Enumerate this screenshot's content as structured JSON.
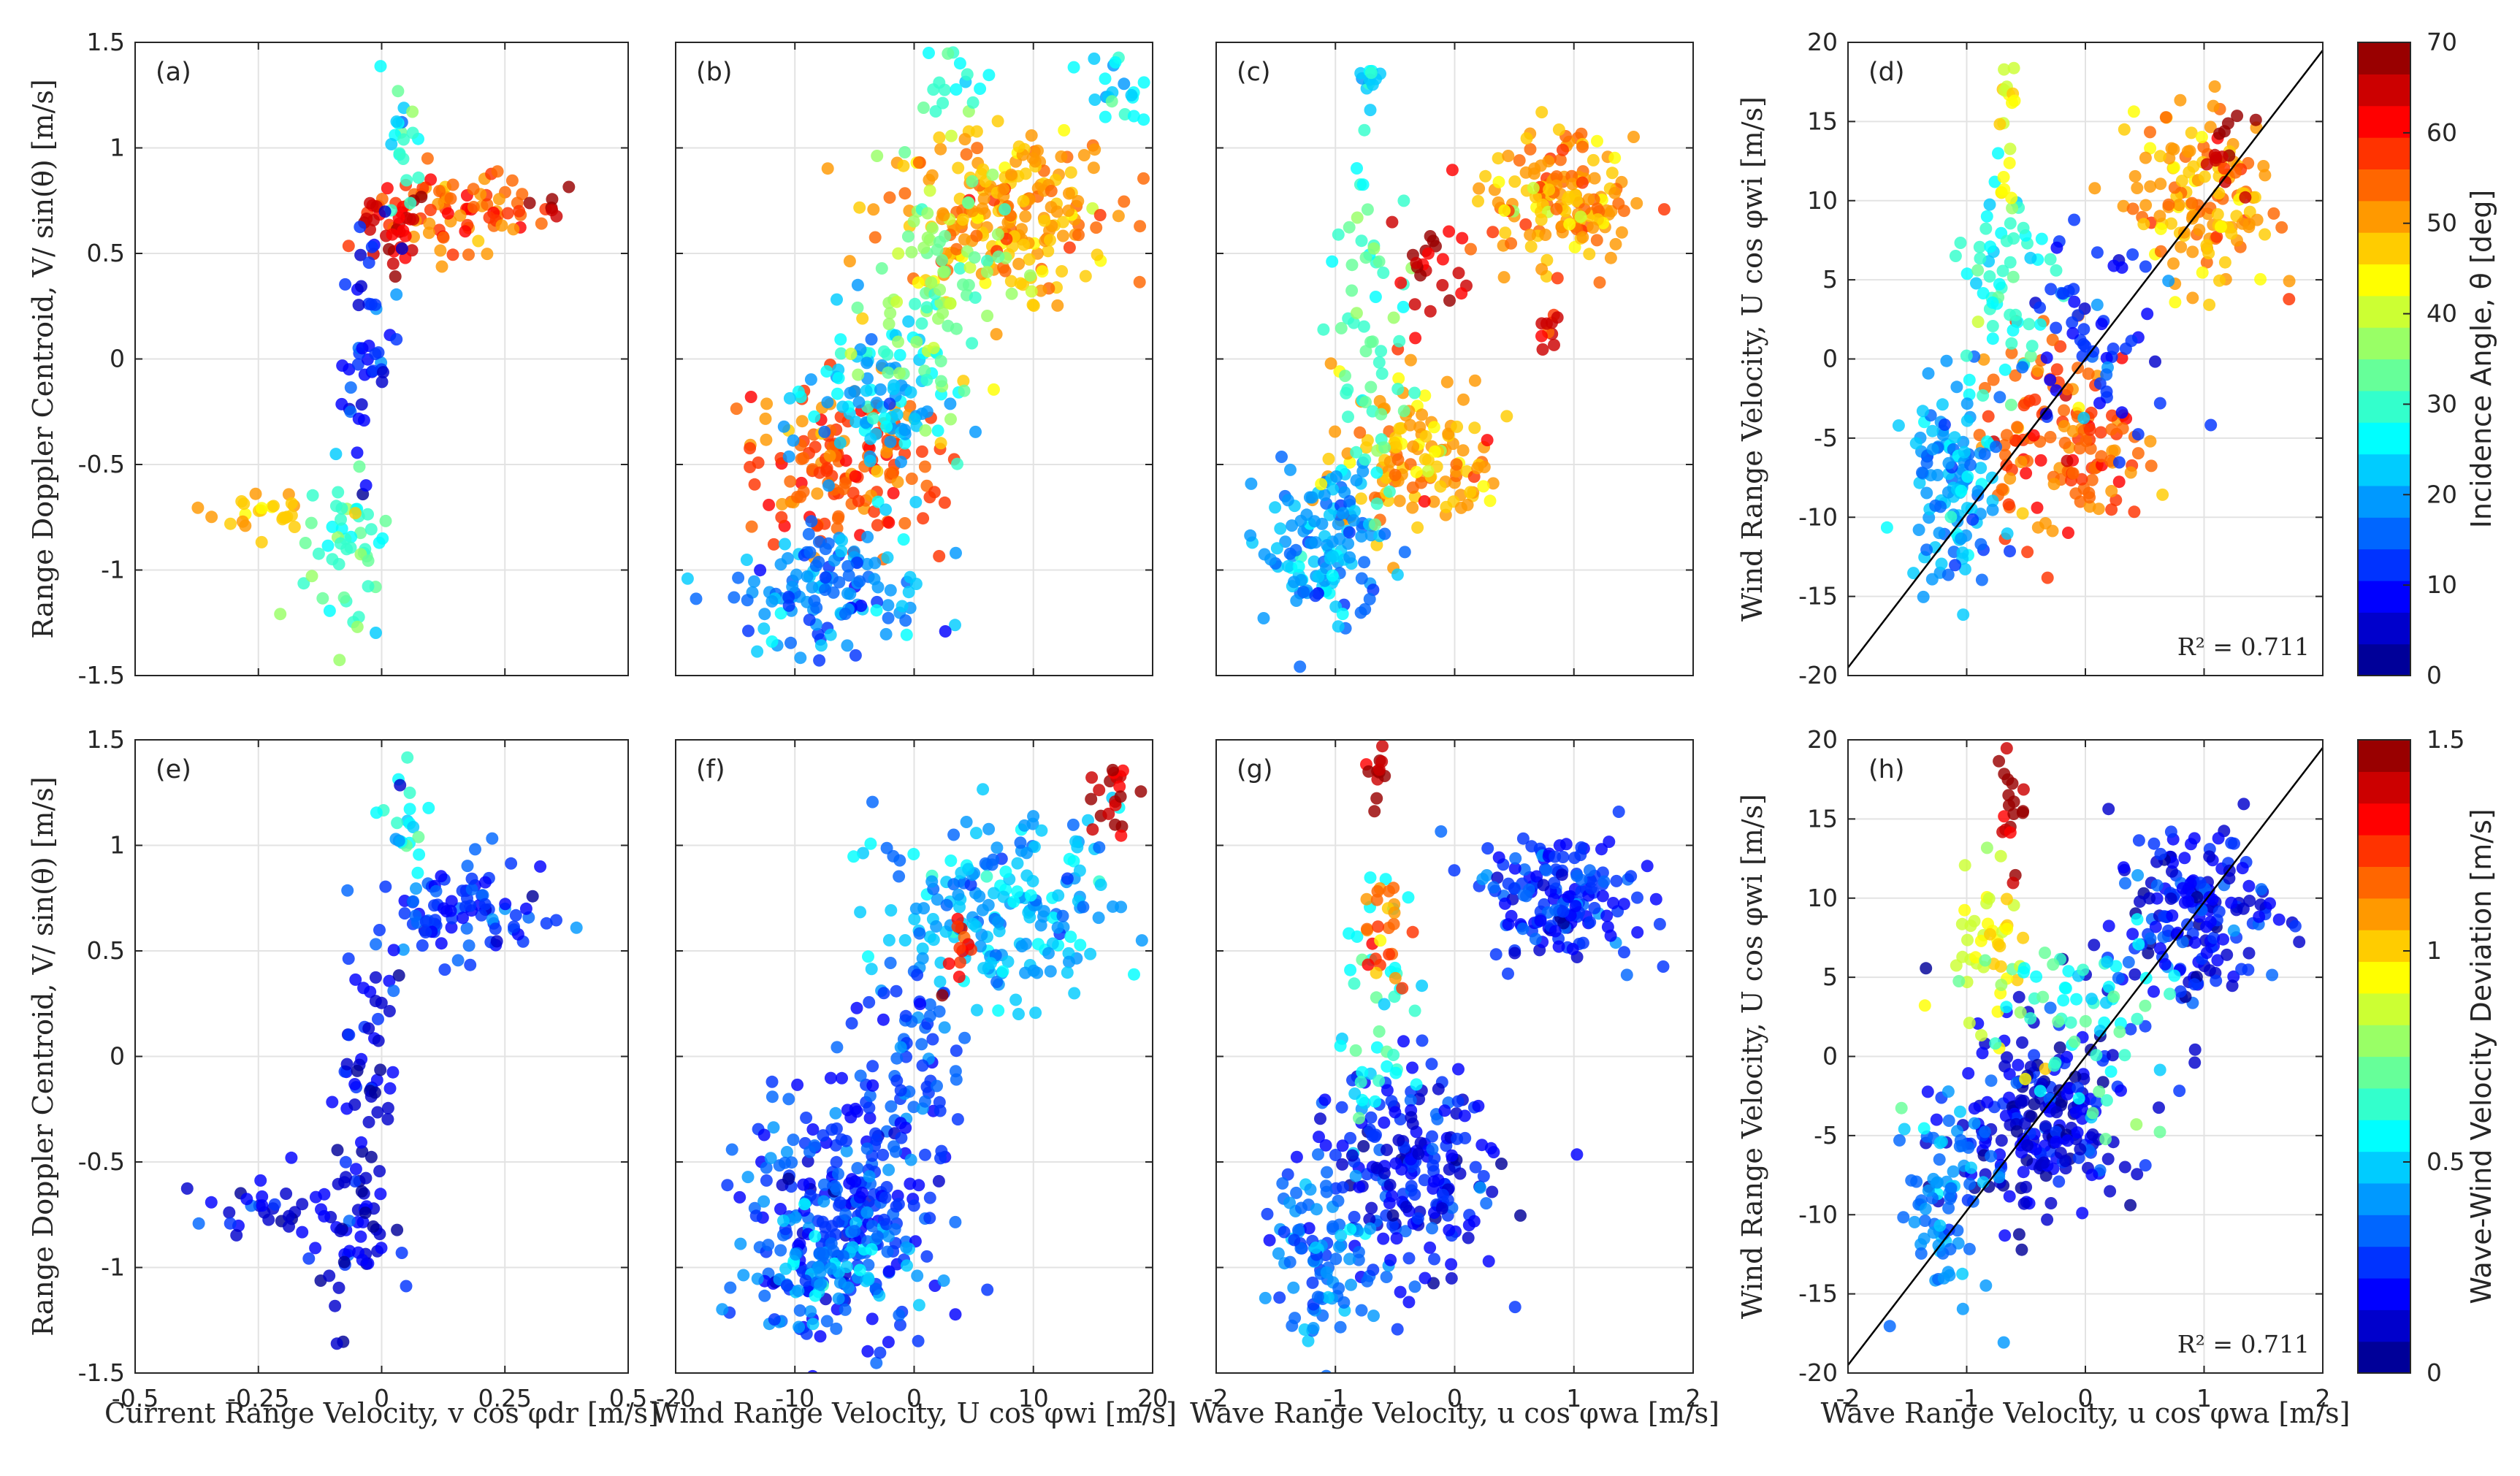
{
  "figure": {
    "panel_labels": [
      "(a)",
      "(b)",
      "(c)",
      "(d)",
      "(e)",
      "(f)",
      "(g)",
      "(h)"
    ],
    "ylabel_left": "Range Doppler Centroid, V/ sin(θ) [m/s]",
    "ylabel_right": "Wind Range Velocity, U cos φwi [m/s]",
    "xlabels": [
      "Current Range Velocity, v cos φdr [m/s]",
      "Wind Range Velocity, U cos φwi [m/s]",
      "Wave Range Velocity, u cos φwa [m/s]",
      "Wave Range Velocity, u cos φwa [m/s]"
    ],
    "colorbar_top": {
      "label": "Incidence Angle, θ [deg]",
      "ticks": [
        "0",
        "10",
        "20",
        "30",
        "40",
        "50",
        "60",
        "70"
      ],
      "range": [
        0,
        70
      ]
    },
    "colorbar_bottom": {
      "label": "Wave-Wind Velocity Deviation [m/s]",
      "ticks": [
        "0",
        "0.5",
        "1",
        "1.5"
      ],
      "range": [
        0,
        1.5
      ]
    },
    "r2_text": "R² = 0.711"
  },
  "chart_data": [
    {
      "panel": "a",
      "type": "scatter",
      "xlim": [
        -0.5,
        0.5
      ],
      "ylim": [
        -1.5,
        1.5
      ],
      "xticks": [
        "-0.5",
        "-0.25",
        "0",
        "0.25",
        "0.5"
      ],
      "yticks": [
        "-1.5",
        "-1",
        "-0.5",
        "0",
        "0.5",
        "1",
        "1.5"
      ],
      "color_by": "Incidence Angle",
      "grid": true,
      "clusters": [
        {
          "x": 0.15,
          "y": 0.7,
          "sx": 0.09,
          "sy": 0.1,
          "n": 80,
          "c": 55
        },
        {
          "x": 0.02,
          "y": 0.62,
          "sx": 0.04,
          "sy": 0.1,
          "n": 30,
          "c": 65
        },
        {
          "x": 0.04,
          "y": 1.05,
          "sx": 0.02,
          "sy": 0.15,
          "n": 20,
          "c": 28
        },
        {
          "x": -0.02,
          "y": 0.0,
          "sx": 0.03,
          "sy": 0.3,
          "n": 45,
          "c": 10
        },
        {
          "x": -0.07,
          "y": -0.9,
          "sx": 0.04,
          "sy": 0.2,
          "n": 50,
          "c": 30
        },
        {
          "x": -0.25,
          "y": -0.7,
          "sx": 0.06,
          "sy": 0.08,
          "n": 25,
          "c": 48
        },
        {
          "x": 0.35,
          "y": 0.75,
          "sx": 0.03,
          "sy": 0.05,
          "n": 6,
          "c": 66
        }
      ]
    },
    {
      "panel": "b",
      "type": "scatter",
      "xlim": [
        -20,
        20
      ],
      "ylim": [
        -1.5,
        1.5
      ],
      "xticks": [
        "-20",
        "-10",
        "0",
        "10",
        "20"
      ],
      "yticks": [],
      "color_by": "Incidence Angle",
      "grid": true,
      "clusters": [
        {
          "x": 7,
          "y": 0.7,
          "sx": 5,
          "sy": 0.2,
          "n": 220,
          "c": 50
        },
        {
          "x": -6,
          "y": -0.5,
          "sx": 4,
          "sy": 0.2,
          "n": 150,
          "c": 55
        },
        {
          "x": -7,
          "y": -1.1,
          "sx": 4,
          "sy": 0.15,
          "n": 130,
          "c": 18
        },
        {
          "x": -3,
          "y": -0.2,
          "sx": 3,
          "sy": 0.2,
          "n": 100,
          "c": 22
        },
        {
          "x": 2,
          "y": 0.3,
          "sx": 3,
          "sy": 0.3,
          "n": 90,
          "c": 35
        },
        {
          "x": 17,
          "y": 1.28,
          "sx": 1.2,
          "sy": 0.08,
          "n": 20,
          "c": 25
        },
        {
          "x": 4,
          "y": 1.3,
          "sx": 2,
          "sy": 0.1,
          "n": 15,
          "c": 28
        }
      ]
    },
    {
      "panel": "c",
      "type": "scatter",
      "xlim": [
        -2,
        2
      ],
      "ylim": [
        -1.5,
        1.5
      ],
      "xticks": [
        "-2",
        "-1",
        "0",
        "1",
        "2"
      ],
      "yticks": [],
      "color_by": "Incidence Angle",
      "grid": true,
      "clusters": [
        {
          "x": 0.9,
          "y": 0.75,
          "sx": 0.3,
          "sy": 0.15,
          "n": 150,
          "c": 50
        },
        {
          "x": -0.3,
          "y": -0.45,
          "sx": 0.35,
          "sy": 0.2,
          "n": 130,
          "c": 50
        },
        {
          "x": -1.1,
          "y": -0.9,
          "sx": 0.25,
          "sy": 0.2,
          "n": 130,
          "c": 20
        },
        {
          "x": -0.7,
          "y": 0.1,
          "sx": 0.2,
          "sy": 0.35,
          "n": 60,
          "c": 30
        },
        {
          "x": -0.7,
          "y": 1.3,
          "sx": 0.03,
          "sy": 0.07,
          "n": 12,
          "c": 22
        },
        {
          "x": -0.2,
          "y": 0.4,
          "sx": 0.15,
          "sy": 0.15,
          "n": 25,
          "c": 65
        },
        {
          "x": 0.8,
          "y": 0.15,
          "sx": 0.05,
          "sy": 0.07,
          "n": 10,
          "c": 62
        }
      ]
    },
    {
      "panel": "d",
      "type": "scatter",
      "xlim": [
        -2,
        2
      ],
      "ylim": [
        -20,
        20
      ],
      "xticks": [
        "-2",
        "-1",
        "0",
        "1",
        "2"
      ],
      "yticks": [
        "-20",
        "-15",
        "-10",
        "-5",
        "0",
        "5",
        "10",
        "15",
        "20"
      ],
      "color_by": "Incidence Angle",
      "grid": true,
      "fit_line": {
        "slope": 9.75,
        "intercept": 0
      },
      "r2": 0.711,
      "clusters": [
        {
          "x": 1.0,
          "y": 10,
          "sx": 0.3,
          "sy": 3,
          "n": 140,
          "c": 50
        },
        {
          "x": -0.2,
          "y": -5,
          "sx": 0.35,
          "sy": 3,
          "n": 140,
          "c": 55
        },
        {
          "x": -1.1,
          "y": -8,
          "sx": 0.2,
          "sy": 3,
          "n": 120,
          "c": 20
        },
        {
          "x": -0.7,
          "y": 4,
          "sx": 0.2,
          "sy": 4,
          "n": 60,
          "c": 28
        },
        {
          "x": -0.65,
          "y": 15,
          "sx": 0.04,
          "sy": 3,
          "n": 20,
          "c": 42
        },
        {
          "x": 0.1,
          "y": 1,
          "sx": 0.3,
          "sy": 3,
          "n": 60,
          "c": 12
        },
        {
          "x": 1.2,
          "y": 13,
          "sx": 0.1,
          "sy": 1,
          "n": 15,
          "c": 65
        }
      ]
    },
    {
      "panel": "e",
      "type": "scatter",
      "xlim": [
        -0.5,
        0.5
      ],
      "ylim": [
        -1.5,
        1.5
      ],
      "xticks": [
        "-0.5",
        "-0.25",
        "0",
        "0.25",
        "0.5"
      ],
      "yticks": [
        "-1.5",
        "-1",
        "-0.5",
        "0",
        "0.5",
        "1",
        "1.5"
      ],
      "color_by": "Wave-Wind Velocity Deviation",
      "grid": true,
      "clusters": [
        {
          "x": 0.15,
          "y": 0.7,
          "sx": 0.09,
          "sy": 0.12,
          "n": 90,
          "c": 0.25
        },
        {
          "x": 0.05,
          "y": 1.1,
          "sx": 0.02,
          "sy": 0.15,
          "n": 20,
          "c": 0.55
        },
        {
          "x": -0.02,
          "y": 0.0,
          "sx": 0.03,
          "sy": 0.3,
          "n": 45,
          "c": 0.15
        },
        {
          "x": -0.07,
          "y": -0.8,
          "sx": 0.05,
          "sy": 0.2,
          "n": 60,
          "c": 0.15
        },
        {
          "x": -0.25,
          "y": -0.72,
          "sx": 0.06,
          "sy": 0.07,
          "n": 25,
          "c": 0.12
        }
      ]
    },
    {
      "panel": "f",
      "type": "scatter",
      "xlim": [
        -20,
        20
      ],
      "ylim": [
        -1.5,
        1.5
      ],
      "xticks": [
        "-20",
        "-10",
        "0",
        "10",
        "20"
      ],
      "yticks": [],
      "color_by": "Wave-Wind Velocity Deviation",
      "grid": true,
      "clusters": [
        {
          "x": 7,
          "y": 0.7,
          "sx": 5,
          "sy": 0.22,
          "n": 200,
          "c": 0.45
        },
        {
          "x": -6,
          "y": -0.7,
          "sx": 4,
          "sy": 0.3,
          "n": 250,
          "c": 0.25
        },
        {
          "x": -8,
          "y": -1.0,
          "sx": 4,
          "sy": 0.15,
          "n": 100,
          "c": 0.4
        },
        {
          "x": 0,
          "y": 0.0,
          "sx": 2,
          "sy": 0.3,
          "n": 60,
          "c": 0.3
        },
        {
          "x": 17,
          "y": 1.25,
          "sx": 1.2,
          "sy": 0.08,
          "n": 20,
          "c": 1.4
        },
        {
          "x": 4,
          "y": 0.5,
          "sx": 1,
          "sy": 0.1,
          "n": 12,
          "c": 1.3
        }
      ]
    },
    {
      "panel": "g",
      "type": "scatter",
      "xlim": [
        -2,
        2
      ],
      "ylim": [
        -1.5,
        1.5
      ],
      "xticks": [
        "-2",
        "-1",
        "0",
        "1",
        "2"
      ],
      "yticks": [],
      "color_by": "Wave-Wind Velocity Deviation",
      "grid": true,
      "clusters": [
        {
          "x": 0.9,
          "y": 0.75,
          "sx": 0.3,
          "sy": 0.15,
          "n": 160,
          "c": 0.25
        },
        {
          "x": -0.4,
          "y": -0.55,
          "sx": 0.4,
          "sy": 0.25,
          "n": 200,
          "c": 0.2
        },
        {
          "x": -1.1,
          "y": -0.9,
          "sx": 0.25,
          "sy": 0.2,
          "n": 100,
          "c": 0.35
        },
        {
          "x": -0.6,
          "y": 0.2,
          "sx": 0.2,
          "sy": 0.3,
          "n": 40,
          "c": 0.6
        },
        {
          "x": -0.65,
          "y": 1.3,
          "sx": 0.03,
          "sy": 0.07,
          "n": 12,
          "c": 1.45
        },
        {
          "x": -0.6,
          "y": 0.6,
          "sx": 0.1,
          "sy": 0.15,
          "n": 25,
          "c": 1.15
        }
      ]
    },
    {
      "panel": "h",
      "type": "scatter",
      "xlim": [
        -2,
        2
      ],
      "ylim": [
        -20,
        20
      ],
      "xticks": [
        "-2",
        "-1",
        "0",
        "1",
        "2"
      ],
      "yticks": [
        "-20",
        "-15",
        "-10",
        "-5",
        "0",
        "5",
        "10",
        "15",
        "20"
      ],
      "color_by": "Wave-Wind Velocity Deviation",
      "grid": true,
      "fit_line": {
        "slope": 9.75,
        "intercept": 0
      },
      "r2": 0.711,
      "clusters": [
        {
          "x": 0.9,
          "y": 9,
          "sx": 0.35,
          "sy": 3,
          "n": 180,
          "c": 0.2
        },
        {
          "x": -0.4,
          "y": -4,
          "sx": 0.4,
          "sy": 3,
          "n": 220,
          "c": 0.15
        },
        {
          "x": -1.2,
          "y": -9,
          "sx": 0.2,
          "sy": 3,
          "n": 80,
          "c": 0.4
        },
        {
          "x": -0.8,
          "y": 6,
          "sx": 0.2,
          "sy": 3,
          "n": 50,
          "c": 0.9
        },
        {
          "x": -0.63,
          "y": 16,
          "sx": 0.04,
          "sy": 2.5,
          "n": 20,
          "c": 1.45
        },
        {
          "x": 0,
          "y": 2,
          "sx": 0.4,
          "sy": 3,
          "n": 60,
          "c": 0.6
        }
      ]
    }
  ]
}
